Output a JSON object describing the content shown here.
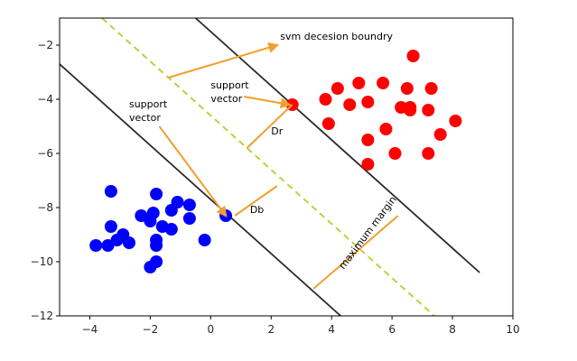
{
  "chart_data": {
    "type": "scatter",
    "title": "",
    "xlabel": "",
    "ylabel": "",
    "xlim": [
      -5,
      10
    ],
    "ylim": [
      -12,
      -1
    ],
    "grid": false,
    "xticks": [
      -4,
      -2,
      0,
      2,
      4,
      6,
      8,
      10
    ],
    "yticks": [
      -2,
      -4,
      -6,
      -8,
      -10,
      -12
    ],
    "xtick_labels": [
      "−4",
      "−2",
      "0",
      "2",
      "4",
      "6",
      "8",
      "10"
    ],
    "ytick_labels": [
      "−2",
      "−4",
      "−6",
      "−8",
      "−10",
      "−12"
    ],
    "series": [
      {
        "color": "#0000ff",
        "points": [
          [
            -3.3,
            -7.4
          ],
          [
            -1.8,
            -7.5
          ],
          [
            -1.1,
            -7.8
          ],
          [
            -0.7,
            -7.9
          ],
          [
            -2.3,
            -8.3
          ],
          [
            -1.9,
            -8.2
          ],
          [
            -1.3,
            -8.1
          ],
          [
            -0.7,
            -8.4
          ],
          [
            -3.3,
            -8.7
          ],
          [
            -2.0,
            -8.5
          ],
          [
            -1.6,
            -8.7
          ],
          [
            -1.3,
            -8.8
          ],
          [
            -3.4,
            -9.4
          ],
          [
            -3.1,
            -9.2
          ],
          [
            -2.9,
            -9.0
          ],
          [
            -2.7,
            -9.3
          ],
          [
            -3.8,
            -9.4
          ],
          [
            -1.8,
            -9.2
          ],
          [
            -1.8,
            -9.4
          ],
          [
            -0.2,
            -9.2
          ],
          [
            -1.8,
            -10.0
          ],
          [
            -2.0,
            -10.2
          ],
          [
            0.5,
            -8.3
          ]
        ]
      },
      {
        "color": "#ff0000",
        "points": [
          [
            6.7,
            -2.4
          ],
          [
            4.2,
            -3.6
          ],
          [
            4.9,
            -3.4
          ],
          [
            5.7,
            -3.4
          ],
          [
            6.5,
            -3.6
          ],
          [
            7.3,
            -3.6
          ],
          [
            3.8,
            -4.0
          ],
          [
            4.6,
            -4.2
          ],
          [
            5.2,
            -4.1
          ],
          [
            6.3,
            -4.3
          ],
          [
            6.6,
            -4.4
          ],
          [
            6.6,
            -4.3
          ],
          [
            7.2,
            -4.4
          ],
          [
            3.9,
            -4.9
          ],
          [
            5.8,
            -5.1
          ],
          [
            8.1,
            -4.8
          ],
          [
            5.2,
            -5.5
          ],
          [
            7.6,
            -5.3
          ],
          [
            6.1,
            -6.0
          ],
          [
            7.2,
            -6.0
          ],
          [
            5.2,
            -6.4
          ],
          [
            2.7,
            -4.2
          ]
        ]
      }
    ],
    "lines": [
      {
        "role": "upper-margin",
        "color": "#2b2b2b",
        "style": "solid",
        "from": [
          -0.5,
          -1.0
        ],
        "to": [
          8.9,
          -10.4
        ]
      },
      {
        "role": "lower-margin",
        "color": "#2b2b2b",
        "style": "solid",
        "from": [
          -5.0,
          -2.7
        ],
        "to": [
          4.3,
          -12.0
        ]
      },
      {
        "role": "decision-boundary",
        "color": "#bcd13a",
        "style": "dashed",
        "from": [
          -3.6,
          -1.0
        ],
        "to": [
          7.4,
          -12.0
        ]
      }
    ],
    "annotations": [
      {
        "text": "svm decesion boundry",
        "x": 2.3,
        "y": -1.8
      },
      {
        "text": "support",
        "x": 0.0,
        "y": -3.6
      },
      {
        "text": "vector",
        "x": 0.0,
        "y": -4.1
      },
      {
        "text": "support",
        "x": -2.7,
        "y": -4.3
      },
      {
        "text": "vector",
        "x": -2.7,
        "y": -4.8
      },
      {
        "text": "Dr",
        "x": 2.0,
        "y": -5.3
      },
      {
        "text": "Db",
        "x": 1.3,
        "y": -8.2
      },
      {
        "text": "maximum margin",
        "x": 4.4,
        "y": -10.3,
        "rotation": -53
      }
    ],
    "arrows": [
      {
        "from": [
          -1.4,
          -3.2
        ],
        "to": [
          2.2,
          -2.0
        ],
        "head": true
      },
      {
        "from": [
          1.1,
          -3.9
        ],
        "to": [
          2.6,
          -4.2
        ],
        "head": true
      },
      {
        "from": [
          -1.7,
          -5.0
        ],
        "to": [
          0.5,
          -8.3
        ],
        "head": true
      }
    ],
    "segments": [
      {
        "from": [
          1.2,
          -5.8
        ],
        "to": [
          2.7,
          -4.2
        ]
      },
      {
        "from": [
          0.8,
          -8.3
        ],
        "to": [
          2.2,
          -7.2
        ]
      },
      {
        "from": [
          3.4,
          -11.0
        ],
        "to": [
          6.2,
          -8.3
        ]
      }
    ],
    "arrow_color": "#f0a030"
  }
}
